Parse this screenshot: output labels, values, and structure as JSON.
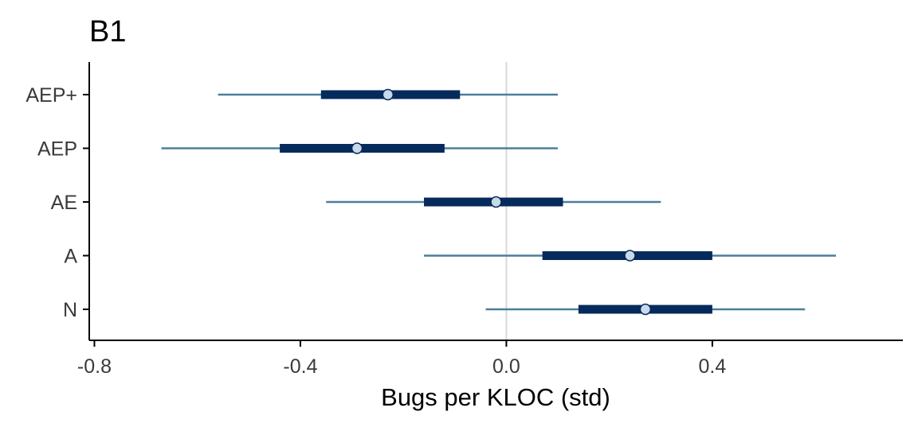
{
  "chart_data": {
    "type": "interval",
    "title": "B1",
    "xlabel": "Bugs per KLOC (std)",
    "ylabel": "",
    "xlim": [
      -0.81,
      0.77
    ],
    "xticks": [
      -0.8,
      -0.4,
      0.0,
      0.4
    ],
    "xtick_labels": [
      "-0.8",
      "-0.4",
      "0.0",
      "0.4"
    ],
    "reference_line": 0.0,
    "categories": [
      "AEP+",
      "AEP",
      "AE",
      "A",
      "N"
    ],
    "series": [
      {
        "category": "AEP+",
        "point": -0.23,
        "inner": [
          -0.36,
          -0.09
        ],
        "outer": [
          -0.56,
          0.1
        ]
      },
      {
        "category": "AEP",
        "point": -0.29,
        "inner": [
          -0.44,
          -0.12
        ],
        "outer": [
          -0.67,
          0.1
        ]
      },
      {
        "category": "AE",
        "point": -0.02,
        "inner": [
          -0.16,
          0.11
        ],
        "outer": [
          -0.35,
          0.3
        ]
      },
      {
        "category": "A",
        "point": 0.24,
        "inner": [
          0.07,
          0.4
        ],
        "outer": [
          -0.16,
          0.64
        ]
      },
      {
        "category": "N",
        "point": 0.27,
        "inner": [
          0.14,
          0.4
        ],
        "outer": [
          -0.04,
          0.58
        ]
      }
    ],
    "grid": false,
    "legend": "none",
    "colors": {
      "outer_interval": "#4a7f9c",
      "inner_interval": "#062a5c",
      "point_fill": "#c8d9ea",
      "point_stroke": "#062a5c",
      "reference_line": "#d9d9d9",
      "axis": "#000000"
    }
  }
}
